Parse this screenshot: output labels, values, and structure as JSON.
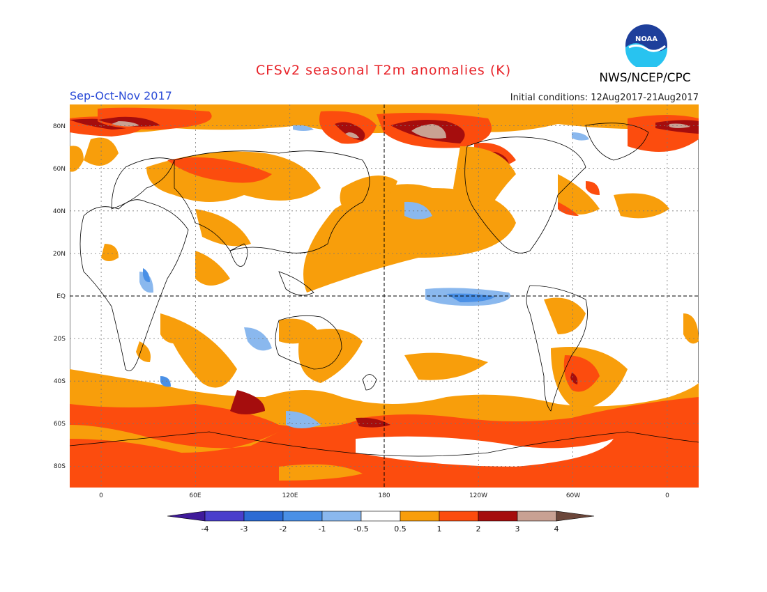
{
  "title": "CFSv2 seasonal T2m anomalies (K)",
  "agency": "NWS/NCEP/CPC",
  "logo_text": "NOAA",
  "season": "Sep-Oct-Nov 2017",
  "initial_conditions": "Initial conditions: 12Aug2017-21Aug2017",
  "map": {
    "type": "heatmap",
    "lat_labels": [
      "80N",
      "60N",
      "40N",
      "20N",
      "EQ",
      "20S",
      "40S",
      "60S",
      "80S"
    ],
    "lon_labels": [
      "0",
      "60E",
      "120E",
      "180",
      "120W",
      "60W",
      "0"
    ],
    "lat_range": [
      -90,
      90
    ],
    "lon_range": [
      -20,
      380
    ],
    "grid": true,
    "colors": {
      "land_outline": "#000000",
      "grid_line": "#666666"
    }
  },
  "legend": {
    "labels": [
      "-4",
      "-3",
      "-2",
      "-1",
      "-0.5",
      "0.5",
      "1",
      "2",
      "3",
      "4"
    ],
    "colors": [
      "#3f1a9a",
      "#4a3fcc",
      "#2c6bd4",
      "#4a90e6",
      "#8ab8ee",
      "#ffffff",
      "#f89e0b",
      "#fc4c0e",
      "#a50d0d",
      "#c9a193",
      "#6b463a"
    ]
  }
}
